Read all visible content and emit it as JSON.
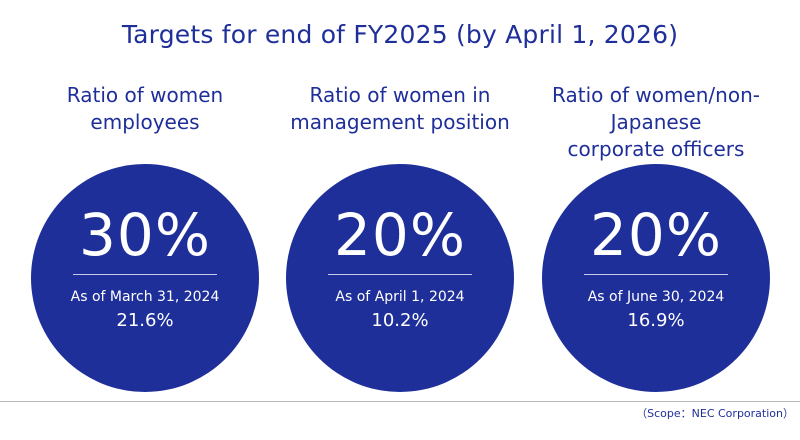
{
  "title": "Targets for end of FY2025 (by April 1, 2026)",
  "colors": {
    "primary": "#1f2f9a",
    "text_on_primary": "#ffffff",
    "rule": "#b8b8b8"
  },
  "metrics": [
    {
      "label_line1": "Ratio of women",
      "label_line2": "employees",
      "target": "30%",
      "as_of": "As of March 31, 2024",
      "current": "21.6%"
    },
    {
      "label_line1": "Ratio of women in",
      "label_line2": "management position",
      "target": "20%",
      "as_of": "As of April 1, 2024",
      "current": "10.2%"
    },
    {
      "label_line1": "Ratio of women/non-Japanese",
      "label_line2": "corporate officers",
      "target": "20%",
      "as_of": "As of June 30, 2024",
      "current": "16.9%"
    }
  ],
  "footnote": "（Scope：NEC Corporation）"
}
